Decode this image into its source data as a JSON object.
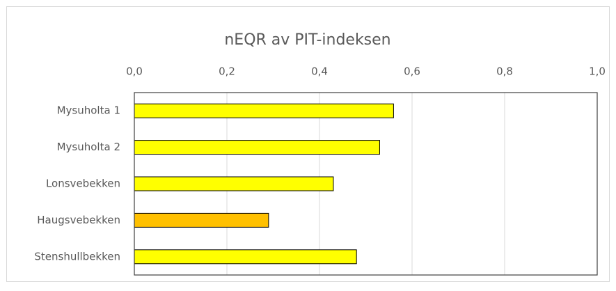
{
  "chart_data": {
    "type": "bar",
    "orientation": "horizontal",
    "title": "nEQR av PIT-indeksen",
    "categories": [
      "Mysuholta 1",
      "Mysuholta 2",
      "Lonsvebekken",
      "Haugsvebekken",
      "Stenshullbekken"
    ],
    "values": [
      0.56,
      0.53,
      0.43,
      0.29,
      0.48
    ],
    "colors": [
      "#ffff00",
      "#ffff00",
      "#ffff00",
      "#ffc000",
      "#ffff00"
    ],
    "xlim": [
      0,
      1
    ],
    "xticks": [
      {
        "value": 0,
        "label": "0,0"
      },
      {
        "value": 0.2,
        "label": "0,2"
      },
      {
        "value": 0.4,
        "label": "0,4"
      },
      {
        "value": 0.6,
        "label": "0,6"
      },
      {
        "value": 0.8,
        "label": "0,8"
      },
      {
        "value": 1,
        "label": "1,0"
      }
    ],
    "grid": true
  }
}
